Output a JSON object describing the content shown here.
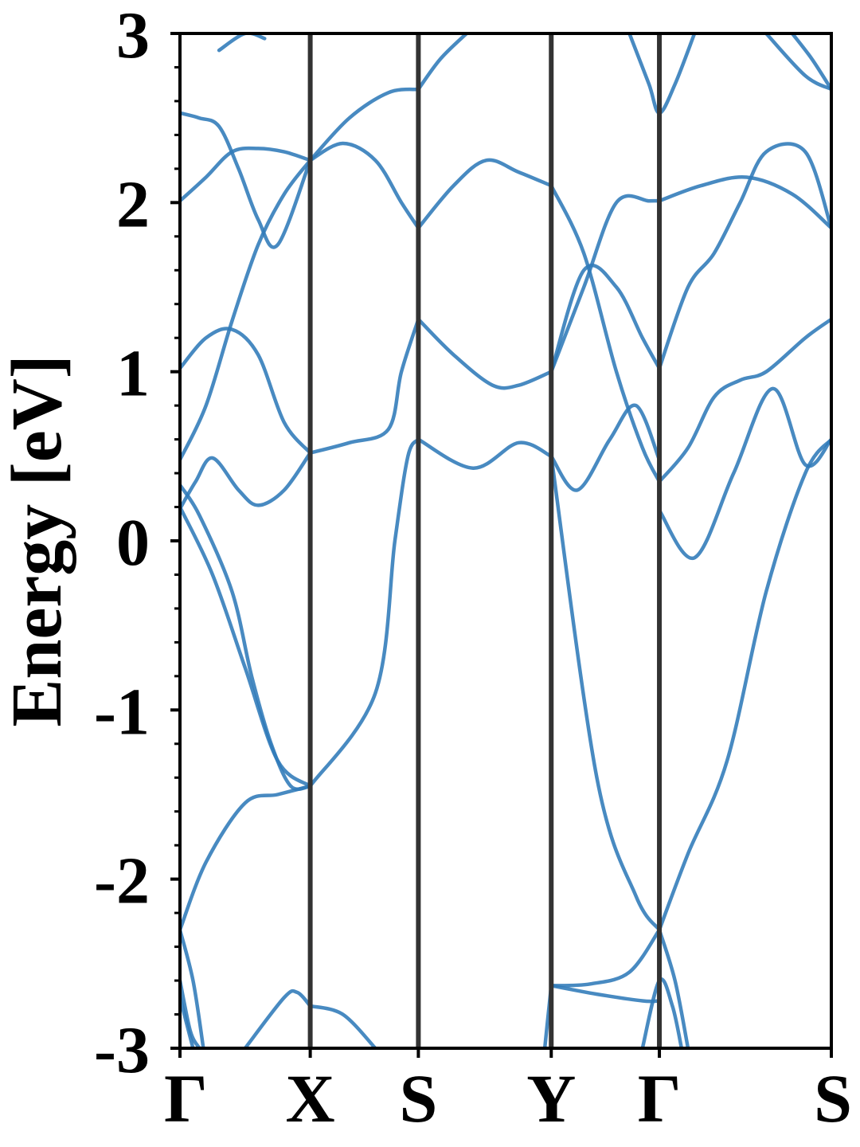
{
  "chart_data": {
    "type": "line",
    "title": "",
    "xlabel": "",
    "ylabel": "Energy [eV]",
    "ylim": [
      -3,
      3
    ],
    "xlim": [
      0,
      5
    ],
    "line_color": "#2f7ab8",
    "kpath_line_color": "#333333",
    "grid": false,
    "kpoints": [
      {
        "label": "Γ",
        "x": 0
      },
      {
        "label": "X",
        "x": 1
      },
      {
        "label": "S",
        "x": 1.83
      },
      {
        "label": "Y",
        "x": 2.85
      },
      {
        "label": "Γ",
        "x": 3.68
      },
      {
        "label": "S",
        "x": 5
      }
    ],
    "yticks": [
      {
        "value": 3,
        "label": "3"
      },
      {
        "value": 2,
        "label": "2"
      },
      {
        "value": 1,
        "label": "1"
      },
      {
        "value": 0,
        "label": "0"
      },
      {
        "value": -1,
        "label": "-1"
      },
      {
        "value": -2,
        "label": "-2"
      },
      {
        "value": -3,
        "label": "-3"
      }
    ],
    "series": [
      {
        "x": [
          0,
          0.25,
          0.5,
          0.75,
          1
        ],
        "values": [
          0.2,
          -0.2,
          -0.75,
          -1.3,
          -1.45
        ]
      },
      {
        "x": [
          1,
          1.5,
          1.65,
          1.75,
          1.83
        ],
        "values": [
          -1.45,
          -0.9,
          0.0,
          0.5,
          0.6
        ]
      },
      {
        "x": [
          1.83,
          2.25,
          2.6,
          2.85
        ],
        "values": [
          0.6,
          0.43,
          0.58,
          0.5
        ]
      },
      {
        "x": [
          2.85,
          3.2,
          3.5,
          3.68
        ],
        "values": [
          0.5,
          -1.4,
          -2.1,
          -2.3
        ]
      },
      {
        "x": [
          3.68,
          3.9,
          4.2,
          4.5,
          4.8,
          5.0
        ],
        "values": [
          -2.3,
          -1.85,
          -1.3,
          -0.3,
          0.4,
          0.6
        ]
      },
      {
        "x": [
          0,
          0.15,
          0.4,
          0.55,
          0.7,
          0.85,
          1
        ],
        "values": [
          0.33,
          0.15,
          -0.3,
          -0.8,
          -1.2,
          -1.45,
          -1.45
        ]
      },
      {
        "x": [
          0,
          0.2,
          0.5,
          0.75,
          1
        ],
        "values": [
          -2.3,
          -1.9,
          -1.55,
          -1.5,
          -1.45
        ]
      },
      {
        "x": [
          0,
          0.12,
          0.25,
          0.45,
          0.6,
          0.8,
          1
        ],
        "values": [
          0.19,
          0.35,
          0.49,
          0.3,
          0.21,
          0.3,
          0.52
        ]
      },
      {
        "x": [
          1,
          1.3,
          1.6,
          1.7,
          1.83
        ],
        "values": [
          0.52,
          0.58,
          0.66,
          1.0,
          1.31
        ]
      },
      {
        "x": [
          1.83,
          2.1,
          2.4,
          2.6,
          2.85
        ],
        "values": [
          1.31,
          1.1,
          0.92,
          0.92,
          1.0
        ]
      },
      {
        "x": [
          2.85,
          3.1,
          3.35,
          3.55,
          3.68
        ],
        "values": [
          1.0,
          1.6,
          1.5,
          1.2,
          1.02
        ]
      },
      {
        "x": [
          3.68,
          3.9,
          4.1,
          4.3,
          4.5,
          4.8,
          5.0
        ],
        "values": [
          1.02,
          1.5,
          1.7,
          2.0,
          2.3,
          2.3,
          1.85
        ]
      },
      {
        "x": [
          0,
          0.2,
          0.4,
          0.6,
          0.8,
          1
        ],
        "values": [
          0.48,
          0.8,
          1.3,
          1.75,
          2.05,
          2.25
        ]
      },
      {
        "x": [
          1,
          1.25,
          1.5,
          1.7,
          1.83
        ],
        "values": [
          2.25,
          2.35,
          2.25,
          2.0,
          1.85
        ]
      },
      {
        "x": [
          1.83,
          2.1,
          2.35,
          2.6,
          2.85
        ],
        "values": [
          1.85,
          2.1,
          2.25,
          2.18,
          2.1
        ]
      },
      {
        "x": [
          2.85,
          3.1,
          3.35,
          3.55,
          3.68
        ],
        "values": [
          2.1,
          1.7,
          1.0,
          0.55,
          0.35
        ]
      },
      {
        "x": [
          3.68,
          3.9,
          4.1,
          4.3,
          4.5,
          4.8,
          5.0
        ],
        "values": [
          0.35,
          0.55,
          0.85,
          0.95,
          1.0,
          1.2,
          1.31
        ]
      },
      {
        "x": [
          0,
          0.2,
          0.4,
          0.6,
          0.8,
          1
        ],
        "values": [
          1.02,
          1.2,
          1.25,
          1.1,
          0.7,
          0.52
        ]
      },
      {
        "x": [
          0,
          0.2,
          0.4,
          0.6,
          0.8,
          1
        ],
        "values": [
          2.01,
          2.15,
          2.3,
          2.32,
          2.3,
          2.25
        ]
      },
      {
        "x": [
          0,
          0.15,
          0.3,
          0.45,
          0.6,
          0.75,
          1
        ],
        "values": [
          2.53,
          2.5,
          2.45,
          2.2,
          1.9,
          1.75,
          2.25
        ]
      },
      {
        "x": [
          1,
          1.3,
          1.6,
          1.83
        ],
        "values": [
          2.25,
          2.5,
          2.65,
          2.67
        ]
      },
      {
        "x": [
          1.83,
          2.0,
          2.2
        ],
        "values": [
          2.67,
          2.85,
          3.0
        ]
      },
      {
        "x": [
          2.85,
          3.05,
          3.3,
          3.5,
          3.68
        ],
        "values": [
          0.5,
          0.3,
          0.6,
          0.8,
          0.48
        ]
      },
      {
        "x": [
          3.68,
          3.95,
          4.25,
          4.55,
          4.8,
          5.0
        ],
        "values": [
          0.18,
          -0.1,
          0.4,
          0.9,
          0.45,
          0.6
        ]
      },
      {
        "x": [
          2.85,
          3.1,
          3.35,
          3.6,
          3.68
        ],
        "values": [
          1.0,
          1.5,
          2.0,
          2.01,
          2.01
        ]
      },
      {
        "x": [
          3.68,
          4.0,
          4.35,
          4.7,
          5.0
        ],
        "values": [
          2.01,
          2.1,
          2.15,
          2.05,
          1.85
        ]
      },
      {
        "x": [
          2.85,
          3.15,
          3.45,
          3.68
        ],
        "values": [
          -2.63,
          -2.62,
          -2.55,
          -2.3
        ]
      },
      {
        "x": [
          2.85,
          3.2,
          3.55,
          3.68
        ],
        "values": [
          -2.63,
          -2.68,
          -2.72,
          -2.72
        ]
      },
      {
        "x": [
          3.68,
          3.8,
          3.9
        ],
        "values": [
          -2.3,
          -2.6,
          -3.0
        ]
      },
      {
        "x": [
          3.55,
          3.68,
          3.78,
          3.85
        ],
        "values": [
          -3.0,
          -2.6,
          -2.75,
          -3.0
        ]
      },
      {
        "x": [
          2.8,
          2.85
        ],
        "values": [
          -3.0,
          -2.63
        ]
      },
      {
        "x": [
          1,
          1.25,
          1.5
        ],
        "values": [
          -2.75,
          -2.8,
          -3.0
        ]
      },
      {
        "x": [
          0.5,
          0.8,
          0.9,
          1
        ],
        "values": [
          -3.0,
          -2.7,
          -2.67,
          -2.75
        ]
      },
      {
        "x": [
          0,
          0.1,
          0.18
        ],
        "values": [
          -2.3,
          -2.6,
          -3.0
        ]
      },
      {
        "x": [
          0,
          0.08,
          0.15
        ],
        "values": [
          -2.6,
          -2.9,
          -3.0
        ]
      },
      {
        "x": [
          0,
          0.1
        ],
        "values": [
          -2.7,
          -3.0
        ]
      },
      {
        "x": [
          3.45,
          3.6,
          3.68,
          3.8,
          3.95
        ],
        "values": [
          3.0,
          2.7,
          2.53,
          2.7,
          3.0
        ]
      },
      {
        "x": [
          4.5,
          4.8,
          5.0
        ],
        "values": [
          3.0,
          2.75,
          2.67
        ]
      },
      {
        "x": [
          4.7,
          4.85,
          5.0
        ],
        "values": [
          3.0,
          2.85,
          2.67
        ]
      },
      {
        "x": [
          0.3,
          0.5,
          0.65
        ],
        "values": [
          2.9,
          3.0,
          2.97
        ]
      }
    ]
  }
}
